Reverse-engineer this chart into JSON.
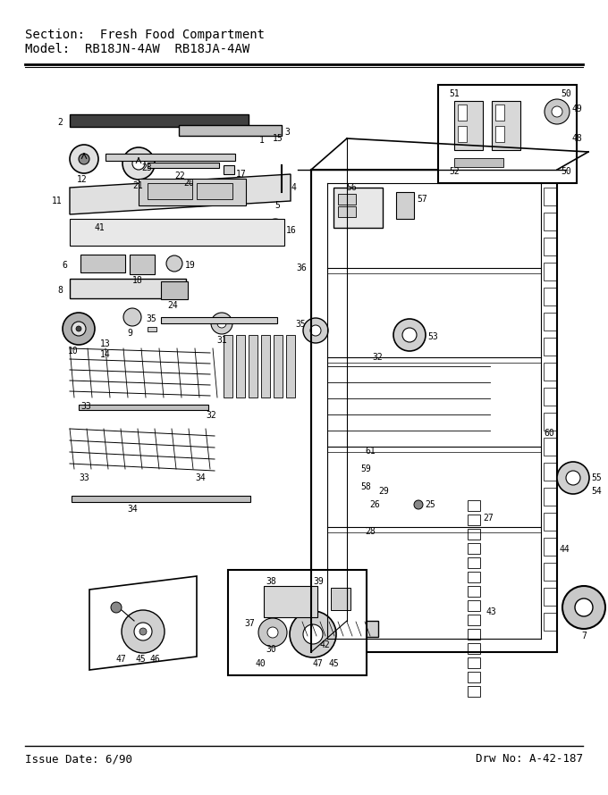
{
  "section_label": "Section:  Fresh Food Compartment",
  "model_label": "Model:  RB18JN-4AW  RB18JA-4AW",
  "issue_date": "Issue Date: 6/90",
  "drw_no": "Drw No: A-42-187",
  "bg_color": "#ffffff",
  "line_color": "#000000",
  "fig_width": 6.8,
  "fig_height": 8.9,
  "dpi": 100
}
